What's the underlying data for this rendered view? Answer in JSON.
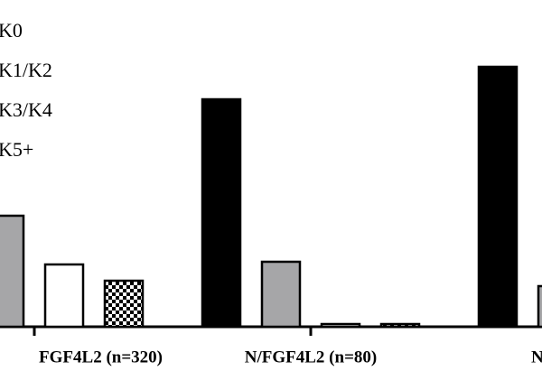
{
  "chart_data": {
    "type": "bar",
    "categories": [
      "FGF4L2 (n=320)",
      "N/FGF4L2 (n=80)",
      "N"
    ],
    "series": [
      {
        "name": "K0",
        "color": "#000000",
        "values": [
          null,
          84,
          96
        ]
      },
      {
        "name": "K1/K2",
        "color": "#a6a6a8",
        "values": [
          41,
          24,
          15
        ]
      },
      {
        "name": "K3/K4",
        "color": "#ffffff",
        "values": [
          23,
          1,
          null
        ]
      },
      {
        "name": "K5+",
        "color": "#000000",
        "pattern": "checker",
        "values": [
          17,
          1,
          null
        ]
      }
    ],
    "ylim": [
      0,
      100
    ]
  }
}
